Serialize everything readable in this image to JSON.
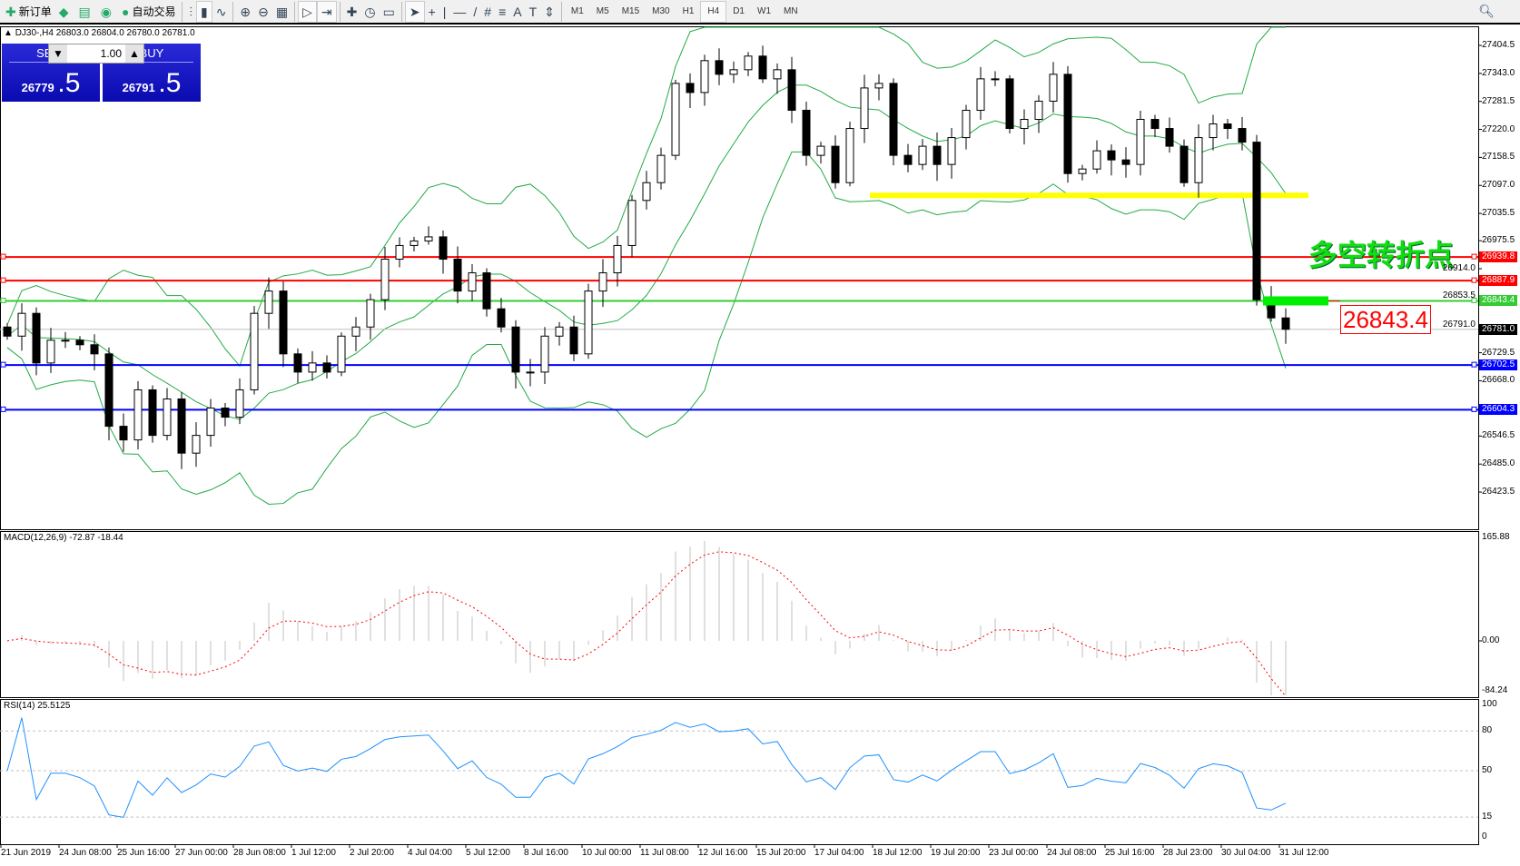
{
  "toolbar": {
    "left": [
      {
        "label": "新订单",
        "icon": "new-order-icon"
      },
      {
        "label": "",
        "icon": "history-center-icon"
      },
      {
        "label": "",
        "icon": "terminal-icon"
      },
      {
        "label": "",
        "icon": "signals-icon"
      },
      {
        "label": "自动交易",
        "icon": "auto-trading-icon"
      }
    ],
    "chart_tools": [
      "bar-chart-icon",
      "candlestick-icon",
      "line-chart-icon",
      "zoom-in-icon",
      "zoom-out-icon",
      "tile-windows-icon",
      "auto-scroll-icon",
      "chart-shift-icon",
      "indicators-icon",
      "periods-icon",
      "templates-icon",
      "cursor-icon",
      "crosshair-icon",
      "vertical-line-icon",
      "horizontal-line-icon",
      "trendline-icon",
      "equidistant-channel-icon",
      "fibonacci-icon",
      "text-icon",
      "text-label-icon",
      "arrows-icon"
    ],
    "timeframes": [
      "M1",
      "M5",
      "M15",
      "M30",
      "H1",
      "H4",
      "D1",
      "W1",
      "MN"
    ],
    "active_timeframe": "H4"
  },
  "chart": {
    "header": "DJ30-,H4  26803.0 26804.0 26780.0 26781.0",
    "trade_panel": {
      "sell_label": "SELL",
      "buy_label": "BUY",
      "lot": "1.00",
      "sell_big": "26779",
      "sell_small": ".5",
      "buy_big": "26791",
      "buy_small": ".5"
    },
    "annotation_text": "多空转折点",
    "annotation_price": "26843.4",
    "price_axis": [
      "27404.5",
      "27343.0",
      "27281.5",
      "27220.0",
      "27158.5",
      "27097.0",
      "27035.5",
      "26975.5",
      "26914.0",
      "26853.5",
      "26791.0",
      "26729.5",
      "26668.0",
      "26546.5",
      "26485.0",
      "26423.5"
    ],
    "hlines": [
      {
        "price": 26939.8,
        "label": "26939.8",
        "color": "#ff0000"
      },
      {
        "price": 26887.9,
        "label": "26887.9",
        "color": "#ff0000"
      },
      {
        "price": 26843.4,
        "label": "26843.4",
        "color": "#33cc33"
      },
      {
        "price": 26781.0,
        "label": "26781.0",
        "color": "#000000"
      },
      {
        "price": 26702.5,
        "label": "26702.5",
        "color": "#0000ff"
      },
      {
        "price": 26604.3,
        "label": "26604.3",
        "color": "#0000ff"
      }
    ],
    "support_line_price": 27075,
    "colors": {
      "bollinger": "#22aa44",
      "support": "#ffff00",
      "zone": "#00ee00",
      "macd_signal": "#ff0000",
      "macd_hist": "#c0c0c0",
      "rsi": "#1e90ff"
    }
  },
  "chart_data": {
    "type": "candlestick",
    "symbol": "DJ30-",
    "timeframe": "H4",
    "closes": [
      26766,
      26816,
      26707,
      26757,
      26757,
      26747,
      26727,
      26568,
      26538,
      26648,
      26548,
      26628,
      26509,
      26548,
      26608,
      26588,
      26648,
      26816,
      26865,
      26727,
      26687,
      26707,
      26687,
      26766,
      26786,
      26846,
      26935,
      26965,
      26975,
      26984,
      26935,
      26865,
      26905,
      26826,
      26786,
      26687,
      26687,
      26766,
      26786,
      26727,
      26865,
      26905,
      26965,
      27064,
      27103,
      27163,
      27321,
      27301,
      27371,
      27341,
      27351,
      27381,
      27331,
      27351,
      27262,
      27163,
      27183,
      27103,
      27222,
      27311,
      27321,
      27163,
      27143,
      27183,
      27143,
      27202,
      27262,
      27331,
      27331,
      27222,
      27242,
      27282,
      27341,
      27123,
      27133,
      27173,
      27153,
      27143,
      27242,
      27222,
      27183,
      27103,
      27202,
      27232,
      27222,
      27192,
      26846,
      26806,
      26781
    ],
    "yrange": [
      26423.5,
      27404.5
    ],
    "time_labels": [
      "21 Jun 2019",
      "24 Jun 08:00",
      "25 Jun 16:00",
      "27 Jun 00:00",
      "28 Jun 08:00",
      "1 Jul 12:00",
      "2 Jul 20:00",
      "4 Jul 04:00",
      "5 Jul 12:00",
      "8 Jul 16:00",
      "10 Jul 00:00",
      "11 Jul 08:00",
      "12 Jul 16:00",
      "15 Jul 20:00",
      "17 Jul 04:00",
      "18 Jul 12:00",
      "19 Jul 20:00",
      "23 Jul 00:00",
      "24 Jul 08:00",
      "25 Jul 16:00",
      "28 Jul 23:00",
      "30 Jul 04:00",
      "31 Jul 12:00"
    ]
  },
  "macd": {
    "label": "MACD(12,26,9) -72.87 -18.44",
    "axis": [
      "165.88",
      "0.00",
      "-84.24"
    ],
    "range": [
      -84.24,
      165.88
    ]
  },
  "rsi": {
    "label": "RSI(14) 25.5125",
    "axis": [
      "100",
      "80",
      "50",
      "15",
      "0"
    ],
    "levels": [
      80,
      50,
      15
    ]
  }
}
